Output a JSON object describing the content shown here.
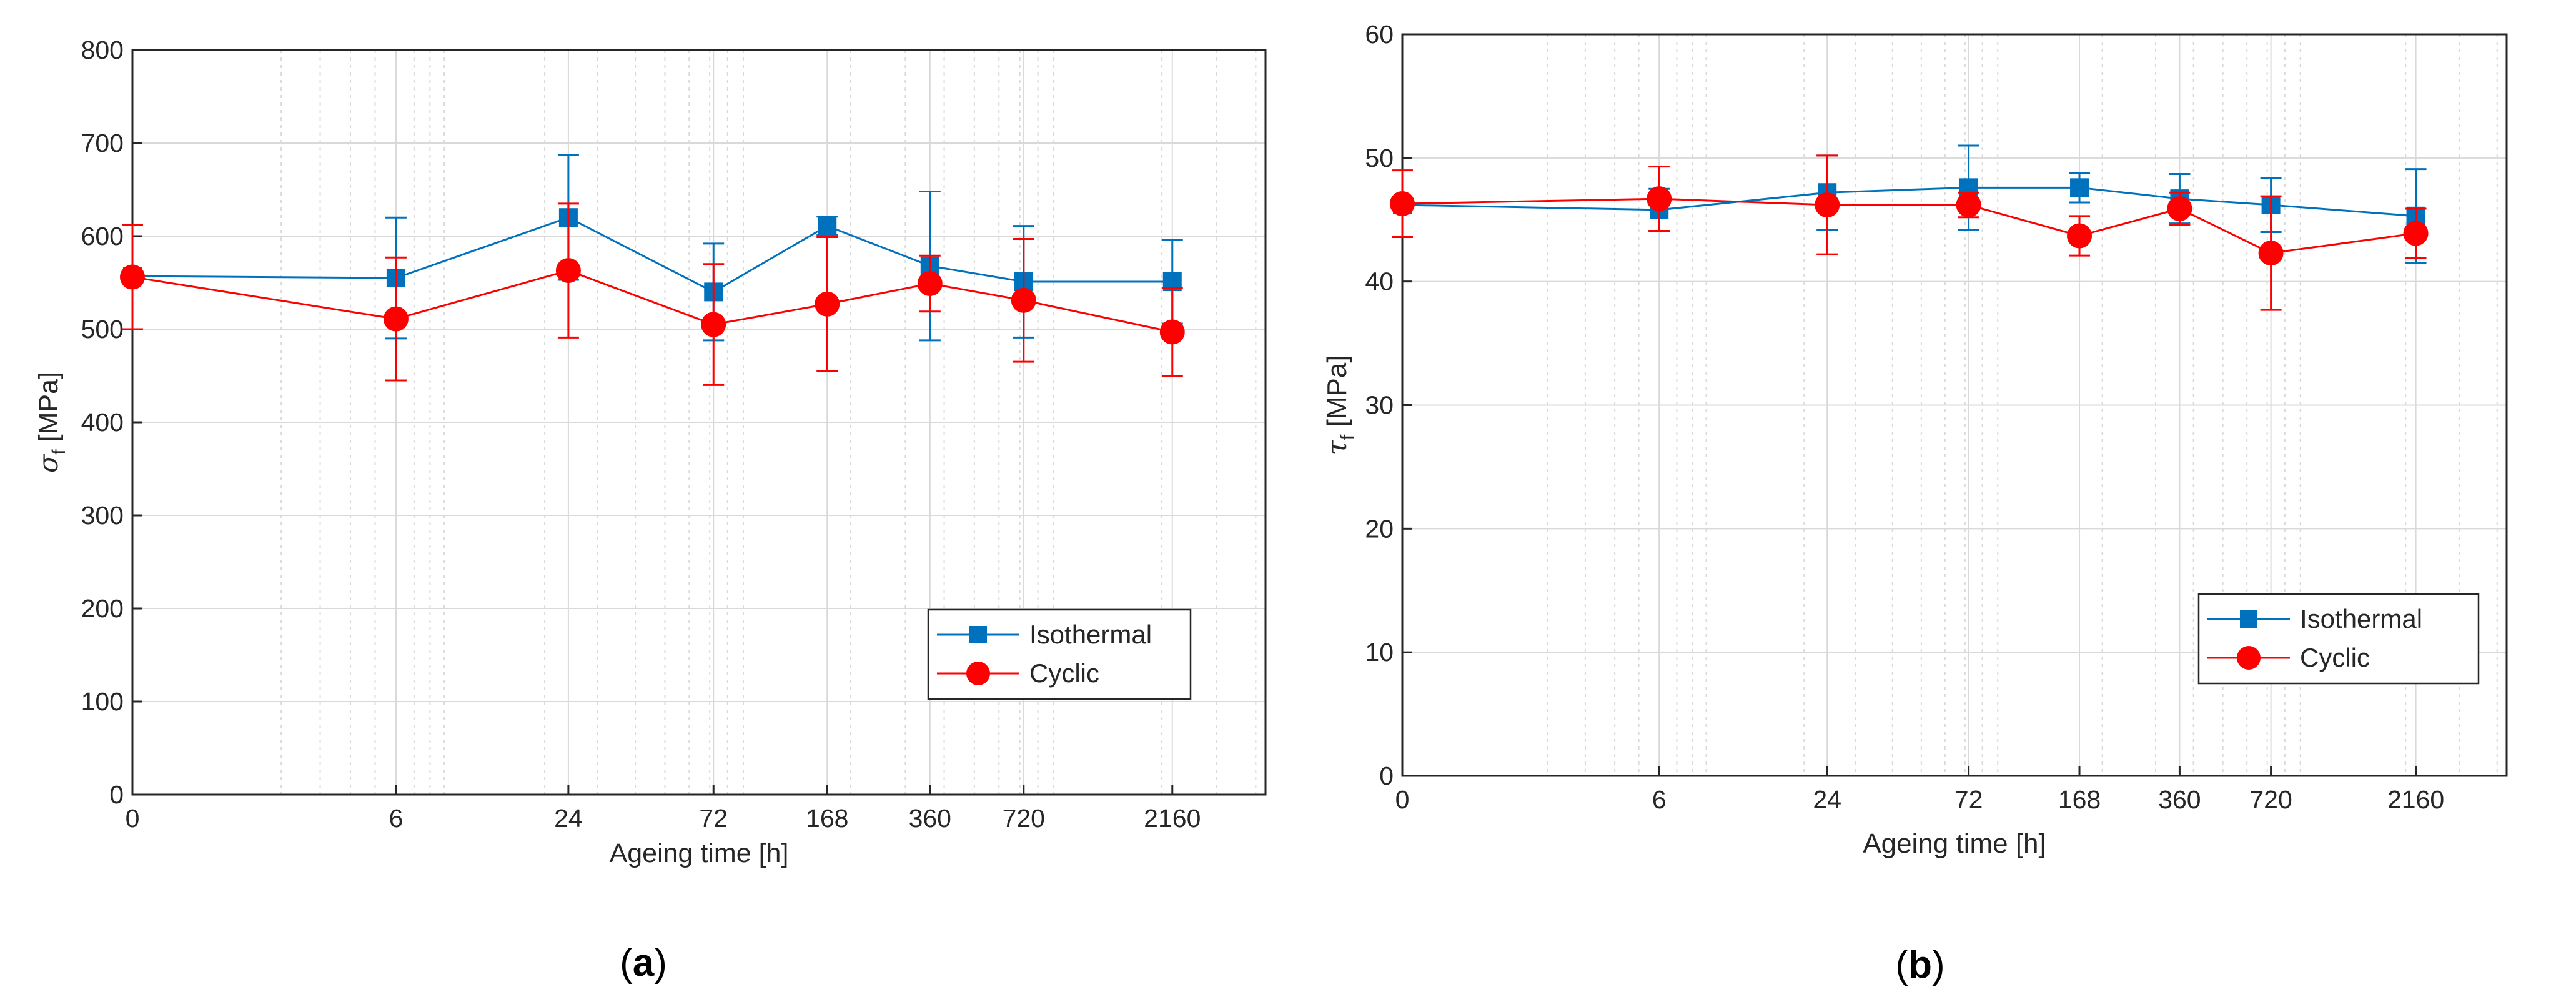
{
  "colors": {
    "isothermal": "#0072BD",
    "cyclic": "#FF0000",
    "grid": "#D9D9D9",
    "axis": "#262626"
  },
  "chart_data": [
    {
      "id": "a",
      "type": "line",
      "panel_label": "(a)",
      "xlabel": "Ageing time [h]",
      "ylabel": "σ_f [MPa]",
      "ylabel_main": "σ",
      "ylabel_sub": "f",
      "ylabel_unit": " [MPa]",
      "x_scale": "log(x+1)",
      "xlim": [
        0,
        4300
      ],
      "ylim": [
        0,
        800
      ],
      "grid": true,
      "xticks": [
        0,
        6,
        24,
        72,
        168,
        360,
        720,
        2160
      ],
      "xtick_labels": [
        "0",
        "6",
        "24",
        "72",
        "168",
        "360",
        "720",
        "2160"
      ],
      "yticks": [
        0,
        100,
        200,
        300,
        400,
        500,
        600,
        700,
        800
      ],
      "ytick_labels": [
        "0",
        "100",
        "200",
        "300",
        "400",
        "500",
        "600",
        "700",
        "800"
      ],
      "legend_position": "lower-right",
      "series": [
        {
          "name": "Isothermal",
          "marker": "square",
          "x": [
            0,
            6,
            24,
            72,
            168,
            360,
            720,
            2160
          ],
          "y": [
            557,
            555,
            620,
            540,
            611,
            568,
            551,
            551
          ],
          "err": [
            0,
            65,
            67,
            52,
            10,
            80,
            60,
            45
          ]
        },
        {
          "name": "Cyclic",
          "marker": "circle",
          "x": [
            0,
            6,
            24,
            72,
            168,
            360,
            720,
            2160
          ],
          "y": [
            556,
            511,
            563,
            505,
            527,
            549,
            531,
            497
          ],
          "err": [
            56,
            66,
            72,
            65,
            72,
            30,
            66,
            47
          ]
        }
      ]
    },
    {
      "id": "b",
      "type": "line",
      "panel_label": "(b)",
      "xlabel": "Ageing time [h]",
      "ylabel": "τ_f [MPa]",
      "ylabel_main": "τ",
      "ylabel_sub": "f",
      "ylabel_unit": " [MPa]",
      "x_scale": "log(x+1)",
      "xlim": [
        0,
        4300
      ],
      "ylim": [
        0,
        60
      ],
      "grid": true,
      "xticks": [
        0,
        6,
        24,
        72,
        168,
        360,
        720,
        2160
      ],
      "xtick_labels": [
        "0",
        "6",
        "24",
        "72",
        "168",
        "360",
        "720",
        "2160"
      ],
      "yticks": [
        0,
        10,
        20,
        30,
        40,
        50,
        60
      ],
      "ytick_labels": [
        "0",
        "10",
        "20",
        "30",
        "40",
        "50",
        "60"
      ],
      "legend_position": "lower-right",
      "series": [
        {
          "name": "Isothermal",
          "marker": "square",
          "x": [
            0,
            6,
            24,
            72,
            168,
            360,
            720,
            2160
          ],
          "y": [
            46.2,
            45.8,
            47.2,
            47.6,
            47.6,
            46.7,
            46.2,
            45.3
          ],
          "err": [
            0,
            1.7,
            3.0,
            3.4,
            1.2,
            2.0,
            2.2,
            3.8
          ]
        },
        {
          "name": "Cyclic",
          "marker": "circle",
          "x": [
            0,
            6,
            24,
            72,
            168,
            360,
            720,
            2160
          ],
          "y": [
            46.3,
            46.7,
            46.2,
            46.2,
            43.7,
            45.9,
            42.3,
            43.9
          ],
          "err": [
            2.7,
            2.6,
            4.0,
            1.0,
            1.6,
            1.3,
            4.6,
            2.0
          ]
        }
      ]
    }
  ]
}
